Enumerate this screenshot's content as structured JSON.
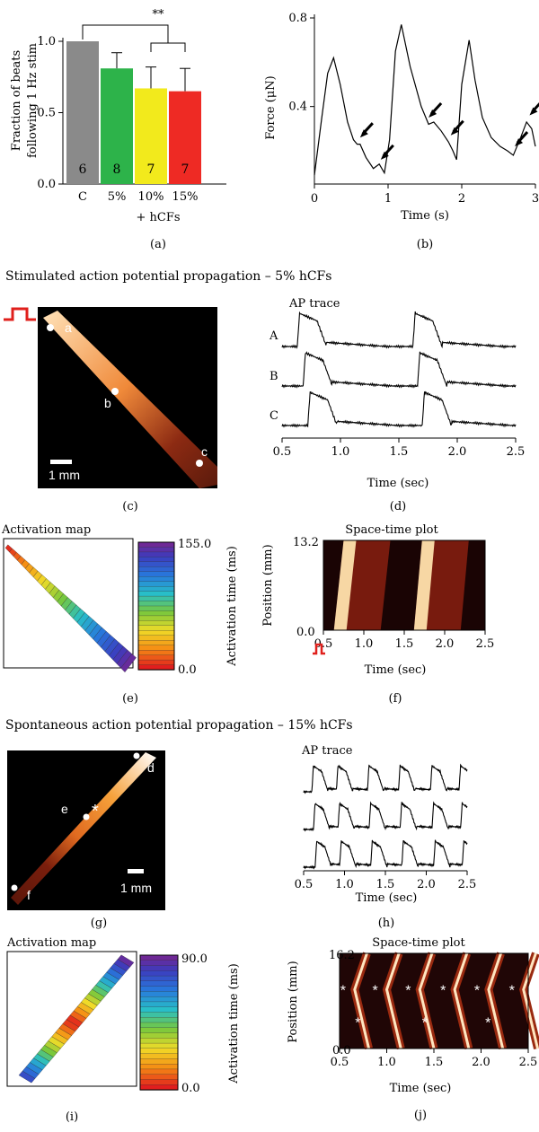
{
  "sections": {
    "stimulated_title": "Stimulated action potential propagation – 5% hCFs",
    "spontaneous_title": "Spontaneous action potential propagation – 15% hCFs"
  },
  "panel_labels": {
    "a": "(a)",
    "b": "(b)",
    "c": "(c)",
    "d": "(d)",
    "e": "(e)",
    "f": "(f)",
    "g": "(g)",
    "h": "(h)",
    "i": "(i)",
    "j": "(j)"
  },
  "panel_a": {
    "ylabel_line1": "Fraction of beats",
    "ylabel_line2": "following 1 Hz stim",
    "xsub": "+ hCFs",
    "significance": "**",
    "yticks": [
      "0.0",
      "0.5",
      "1.0"
    ]
  },
  "panel_b": {
    "xlabel": "Time (s)",
    "ylabel": "Force (μN)",
    "yticks": [
      "0.4",
      "0.8"
    ],
    "xticks": [
      "0",
      "1",
      "2",
      "3"
    ]
  },
  "panel_c": {
    "labels": [
      "a",
      "b",
      "c"
    ],
    "scale": "1 mm"
  },
  "panel_d": {
    "title": "AP trace",
    "traces": [
      "A",
      "B",
      "C"
    ],
    "xlabel": "Time (sec)",
    "xticks": [
      "0.5",
      "1.0",
      "1.5",
      "2.0",
      "2.5"
    ]
  },
  "panel_e": {
    "title": "Activation map",
    "max": "155.0",
    "min": "0.0",
    "colorbar_label": "Activation time (ms)"
  },
  "panel_f": {
    "title": "Space-time plot",
    "ylabel": "Position (mm)",
    "xlabel": "Time (sec)",
    "ymax": "13.2",
    "ymin": "0.0",
    "xticks": [
      "0.5",
      "1.0",
      "1.5",
      "2.0",
      "2.5"
    ]
  },
  "panel_g": {
    "labels": [
      "d",
      "e",
      "f"
    ],
    "scale": "1 mm"
  },
  "panel_h": {
    "title": "AP trace",
    "xlabel": "Time (sec)",
    "xticks": [
      "0.5",
      "1.0",
      "1.5",
      "2.0",
      "2.5"
    ]
  },
  "panel_i": {
    "title": "Activation map",
    "max": "90.0",
    "min": "0.0",
    "colorbar_label": "Activation time (ms)"
  },
  "panel_j": {
    "title": "Space-time plot",
    "ylabel": "Position (mm)",
    "xlabel": "Time (sec)",
    "ymax": "16.2",
    "ymin": "0.0",
    "xticks": [
      "0.5",
      "1.0",
      "1.5",
      "2.0",
      "2.5"
    ]
  },
  "colors": {
    "control": "#8a8a8a",
    "c5": "#2db34a",
    "c10": "#f2ea1c",
    "c15": "#ee2a24",
    "stim": "#e0201c"
  },
  "chart_data": [
    {
      "type": "bar",
      "title": "",
      "categories": [
        "C",
        "5%",
        "10%",
        "15%"
      ],
      "values": [
        1.0,
        0.81,
        0.67,
        0.65
      ],
      "errors": [
        0,
        0.11,
        0.15,
        0.16
      ],
      "n": [
        "6",
        "8",
        "7",
        "7"
      ],
      "ylabel": "Fraction of beats following 1 Hz stim",
      "xlabel": "+ hCFs",
      "ylim": [
        0,
        1.0
      ]
    },
    {
      "type": "line",
      "title": "",
      "xlabel": "Time (s)",
      "ylabel": "Force (μN)",
      "xlim": [
        0,
        3
      ],
      "ylim": [
        0.05,
        0.8
      ],
      "x": [
        0.0,
        0.1,
        0.18,
        0.26,
        0.35,
        0.45,
        0.53,
        0.58,
        0.62,
        0.7,
        0.8,
        0.88,
        0.95,
        1.02,
        1.1,
        1.18,
        1.3,
        1.45,
        1.55,
        1.62,
        1.72,
        1.82,
        1.88,
        1.93,
        2.0,
        2.1,
        2.18,
        2.28,
        2.4,
        2.52,
        2.62,
        2.7,
        2.8,
        2.88,
        2.95,
        3.0
      ],
      "y": [
        0.09,
        0.35,
        0.55,
        0.62,
        0.5,
        0.33,
        0.25,
        0.23,
        0.23,
        0.17,
        0.12,
        0.14,
        0.1,
        0.25,
        0.65,
        0.77,
        0.58,
        0.4,
        0.32,
        0.33,
        0.29,
        0.24,
        0.2,
        0.16,
        0.5,
        0.7,
        0.52,
        0.35,
        0.26,
        0.22,
        0.2,
        0.18,
        0.26,
        0.33,
        0.3,
        0.22
      ]
    }
  ]
}
